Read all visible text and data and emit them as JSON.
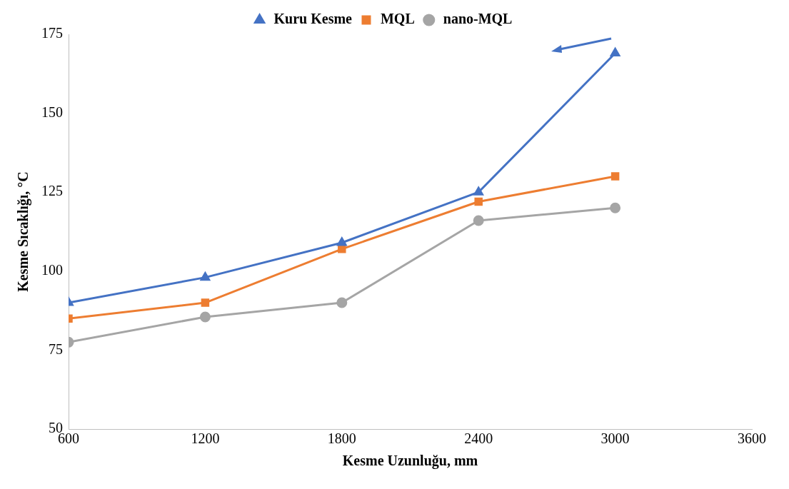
{
  "chart_data": {
    "type": "line",
    "xlabel": "Kesme Uzunluğu, mm",
    "ylabel": "Kesme Sıcaklığı, °C",
    "x": [
      600,
      1200,
      1800,
      2400,
      3000
    ],
    "series": [
      {
        "name": "Kuru Kesme",
        "color": "#4472c4",
        "marker": "triangle",
        "values": [
          90,
          98,
          109,
          125,
          169
        ]
      },
      {
        "name": "MQL",
        "color": "#ed7d31",
        "marker": "square",
        "values": [
          85,
          90,
          107,
          122,
          130
        ]
      },
      {
        "name": "nano-MQL",
        "color": "#a5a5a5",
        "marker": "circle",
        "values": [
          77.5,
          85.5,
          90,
          116,
          120
        ]
      }
    ],
    "xlim": [
      600,
      3600
    ],
    "xticks": [
      600,
      1200,
      1800,
      2400,
      3000,
      3600
    ],
    "ylim": [
      50,
      175
    ],
    "yticks": [
      50,
      75,
      100,
      125,
      150,
      175
    ],
    "grid": false,
    "legend": "top",
    "line_style": "solid"
  }
}
